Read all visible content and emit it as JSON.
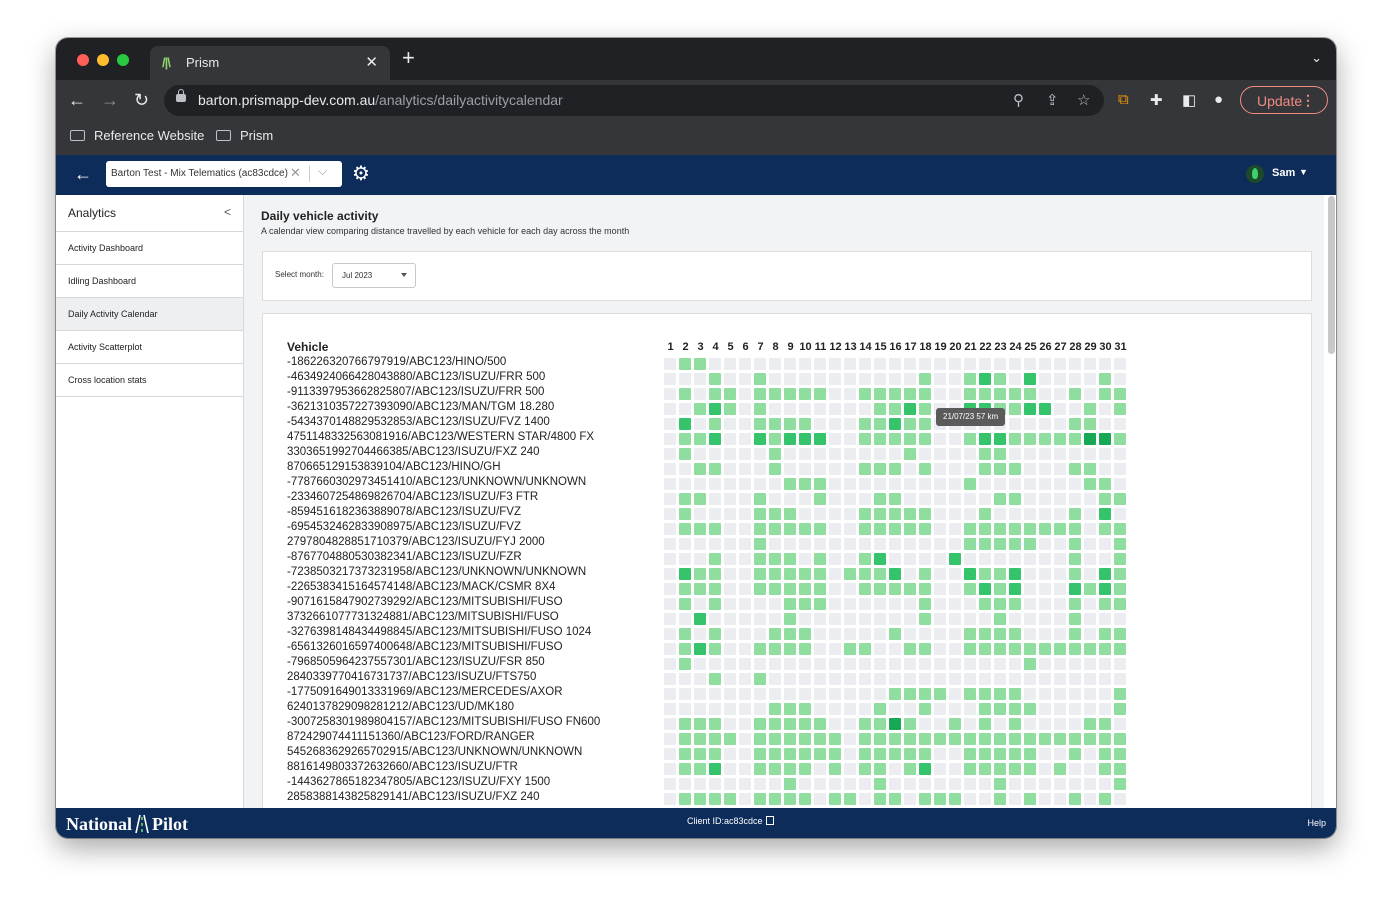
{
  "browser": {
    "tab_title": "Prism",
    "url_host": "barton.prismapp-dev.com.au",
    "url_path": "/analytics/dailyactivitycalendar",
    "update_label": "Update",
    "bookmarks": [
      "Reference Website",
      "Prism"
    ]
  },
  "header": {
    "client_select_value": "Barton Test - Mix Telematics (ac83cdce)",
    "user_name": "Sam"
  },
  "sidebar": {
    "title": "Analytics",
    "items": [
      {
        "label": "Activity Dashboard",
        "active": false
      },
      {
        "label": "Idling Dashboard",
        "active": false
      },
      {
        "label": "Daily Activity Calendar",
        "active": true
      },
      {
        "label": "Activity Scatterplot",
        "active": false
      },
      {
        "label": "Cross location stats",
        "active": false
      }
    ]
  },
  "main": {
    "title": "Daily vehicle activity",
    "subtitle": "A calendar view comparing distance travelled by each vehicle for each day across the month",
    "month_label": "Select month:",
    "month_value": "Jul 2023",
    "vehicle_header": "Vehicle",
    "tooltip": "21/07/23 57 km",
    "days": [
      "1",
      "2",
      "3",
      "4",
      "5",
      "6",
      "7",
      "8",
      "9",
      "10",
      "11",
      "12",
      "13",
      "14",
      "15",
      "16",
      "17",
      "18",
      "19",
      "20",
      "21",
      "22",
      "23",
      "24",
      "25",
      "26",
      "27",
      "28",
      "29",
      "30",
      "31"
    ],
    "vehicles": [
      {
        "name": "-186226320766797919/ABC123/HINO/500",
        "levels": "0110000000000000000000000000000"
      },
      {
        "name": "-4634924066428043880/ABC123/ISUZU/FRR 500",
        "levels": "0001001000000000010012102000010"
      },
      {
        "name": "-9113397953662825807/ABC123/ISUZU/FRR 500",
        "levels": "0101101111100111110011111001011"
      },
      {
        "name": "-3621310357227393090/ABC123/MAN/TGM 18.280",
        "levels": "0012101000000011210022112200101"
      },
      {
        "name": "-5434370148829532853/ABC123/ISUZU/FVZ 1400",
        "levels": "0201001111000112110000000001100"
      },
      {
        "name": "4751148332563081916/ABC123/WESTERN STAR/4800 FX",
        "levels": "0112002122200111110012211111331"
      },
      {
        "name": "330365199270446638​5/ABC123/ISUZU/FXZ 240",
        "levels": "0100000100000000100001100000000"
      },
      {
        "name": "870665129153839104/ABC123/HINO/GH",
        "levels": "0011000100000111010001110001100"
      },
      {
        "name": "-7787660302973451410/ABC123/UNKNOWN/UNKNOWN",
        "levels": "0000000011100000000010000000110"
      },
      {
        "name": "-2334607254869826704/ABC123/ISUZU/F3 FTR",
        "levels": "0110001000100011000000110000011"
      },
      {
        "name": "-8594516182363889078/ABC123/ISUZU/FVZ",
        "levels": "0100001110000111110001000001020"
      },
      {
        "name": "-6954532462833908975/ABC123/ISUZU/FVZ",
        "levels": "0111001111100111110011111111011"
      },
      {
        "name": "2797804828851710379/ABC123/ISUZU/FYJ 2000",
        "levels": "0000001000000000000011111001001"
      },
      {
        "name": "-8767704880530382341/ABC123/ISUZU/FZR",
        "levels": "0001001110100120000200000001001"
      },
      {
        "name": "-7238503217373231958/ABC123/UNKNOWN/UNKNOWN",
        "levels": "0211001111101112010021120001021"
      },
      {
        "name": "-2265383415164574148/ABC123/MACK/CSMR 8X4",
        "levels": "0111001111100111110012120002121"
      },
      {
        "name": "-9071615847902739292/ABC123/MITSUBISHI/FUSO",
        "levels": "0101000011100000010001110001011"
      },
      {
        "name": "3732661077731324881/ABC123/MITSUBISHI/FUSO",
        "levels": "0020000010000000010000100001000"
      },
      {
        "name": "-3276398148434498845/ABC123/MITSUBISHI/FUSO 1024",
        "levels": "0101000111000001000011110001011"
      },
      {
        "name": "-6561326016597400648/ABC123/MITSUBISHI/FUSO",
        "levels": "0121001111001100110011111111111"
      },
      {
        "name": "-7968505964237557301/ABC123/ISUZU/FSR 850",
        "levels": "0100000000000000000000001000000"
      },
      {
        "name": "2840339770416731737/ABC123/ISUZU/FTS750",
        "levels": "0001001000000000000000000000000"
      },
      {
        "name": "-1775091649013331969/ABC123/MERCEDES/AXOR",
        "levels": "0000000000000001111011110000001"
      },
      {
        "name": "6240137829098281212/ABC123/UD/MK180",
        "levels": "0000000111000010010001111000001"
      },
      {
        "name": "-3007258301989804157/ABC123/MITSUBISHI/FUSO FN600",
        "levels": "0111001111100113100101010000110"
      },
      {
        "name": "8724290744111513​60/ABC123/FORD/RANGER",
        "levels": "0111101111110111111111111111111"
      },
      {
        "name": "5452683629265702915/ABC123/UNKNOWN/UNKNOWN",
        "levels": "0111001111110111110011111001011"
      },
      {
        "name": "8816149803372632660/ABC123/ISUZU/FTR",
        "levels": "0112001111010110120011111010011"
      },
      {
        "name": "-1443627865182347805/ABC123/ISUZU/FXY 1500",
        "levels": "0000000010000010000000100000001"
      },
      {
        "name": "2858388143825829141/ABC123/ISUZU/FXZ 240",
        "levels": "0111101111011011011100101001010"
      }
    ]
  },
  "footer": {
    "brand_left": "National",
    "brand_right": "Pilot",
    "client_id": "Client ID:ac83cdce",
    "help": "Help"
  },
  "colors": {
    "nav_bg": "#0d2c5a",
    "empty": "#ebedf0",
    "low": "#8fdea0",
    "mid": "#35c46c",
    "high": "#16a855"
  }
}
